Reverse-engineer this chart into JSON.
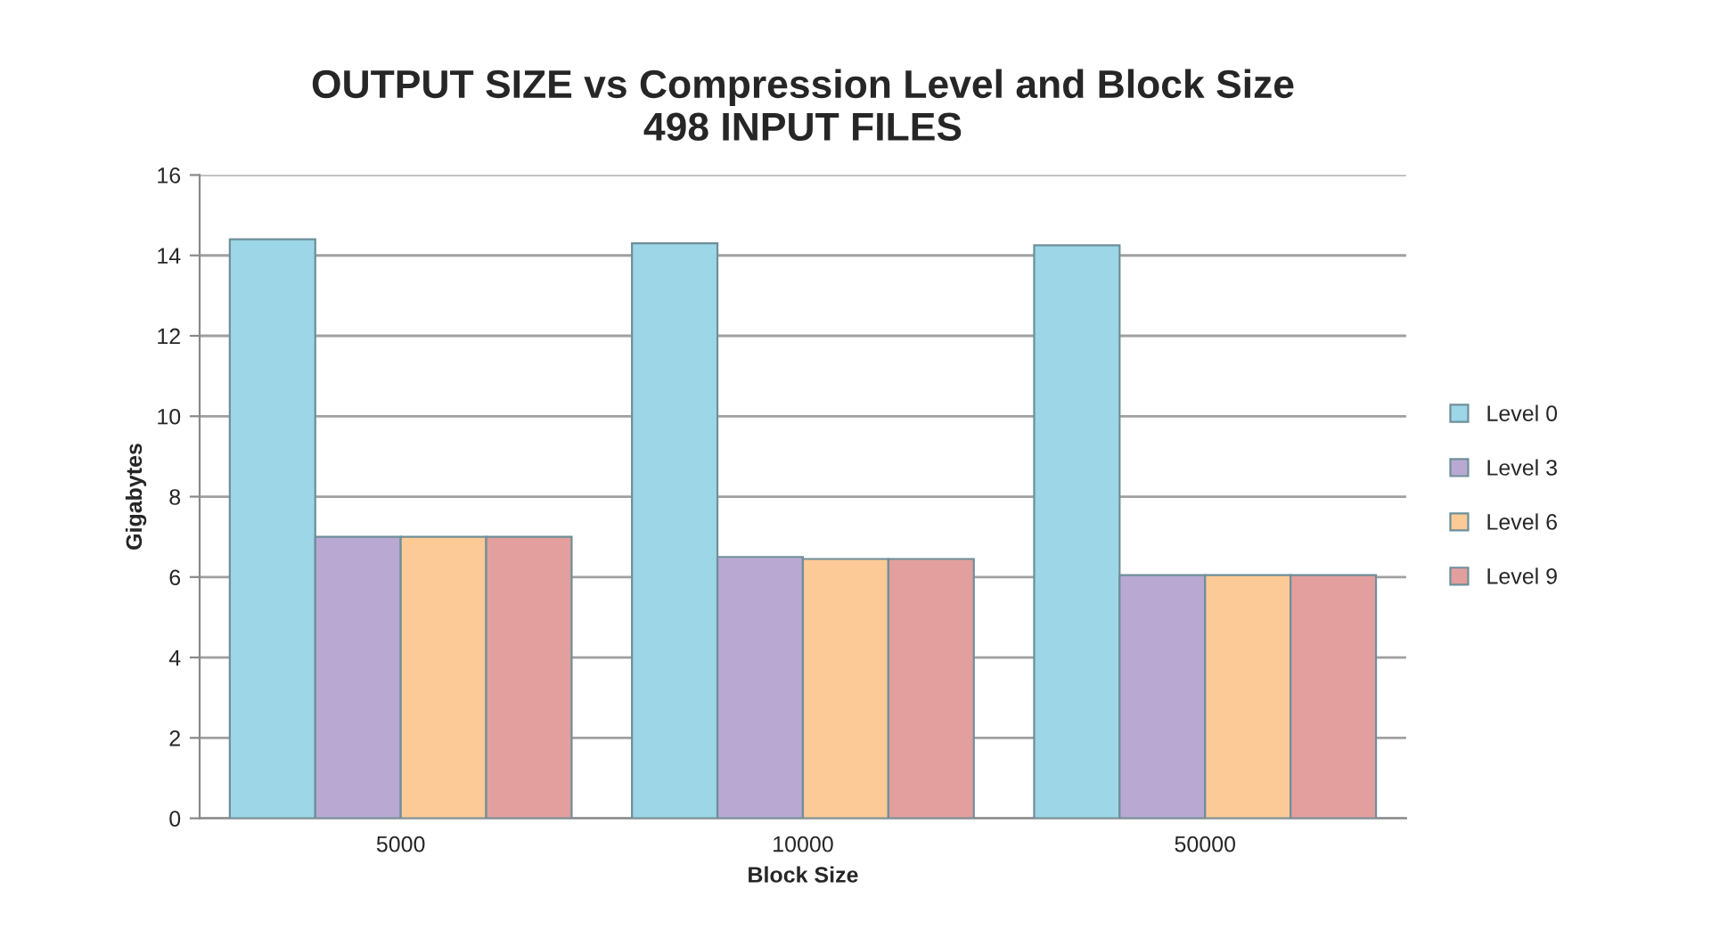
{
  "chart_data": {
    "type": "bar",
    "title": "OUTPUT SIZE vs Compression Level and Block Size\n498 INPUT FILES",
    "xlabel": "Block Size",
    "ylabel": "Gigabytes",
    "categories": [
      "5000",
      "10000",
      "50000"
    ],
    "series": [
      {
        "name": "Level 0",
        "color": "#9dd6e6",
        "values": [
          14.4,
          14.3,
          14.25
        ]
      },
      {
        "name": "Level 3",
        "color": "#b9a9d2",
        "values": [
          7.0,
          6.5,
          6.05
        ]
      },
      {
        "name": "Level 6",
        "color": "#fcca96",
        "values": [
          7.0,
          6.45,
          6.05
        ]
      },
      {
        "name": "Level 9",
        "color": "#e39f9d",
        "values": [
          7.0,
          6.45,
          6.05
        ]
      }
    ],
    "ylim": [
      0,
      16
    ],
    "yticks": [
      0,
      2,
      4,
      6,
      8,
      10,
      12,
      14,
      16
    ],
    "grid": "y",
    "legend": "right"
  }
}
